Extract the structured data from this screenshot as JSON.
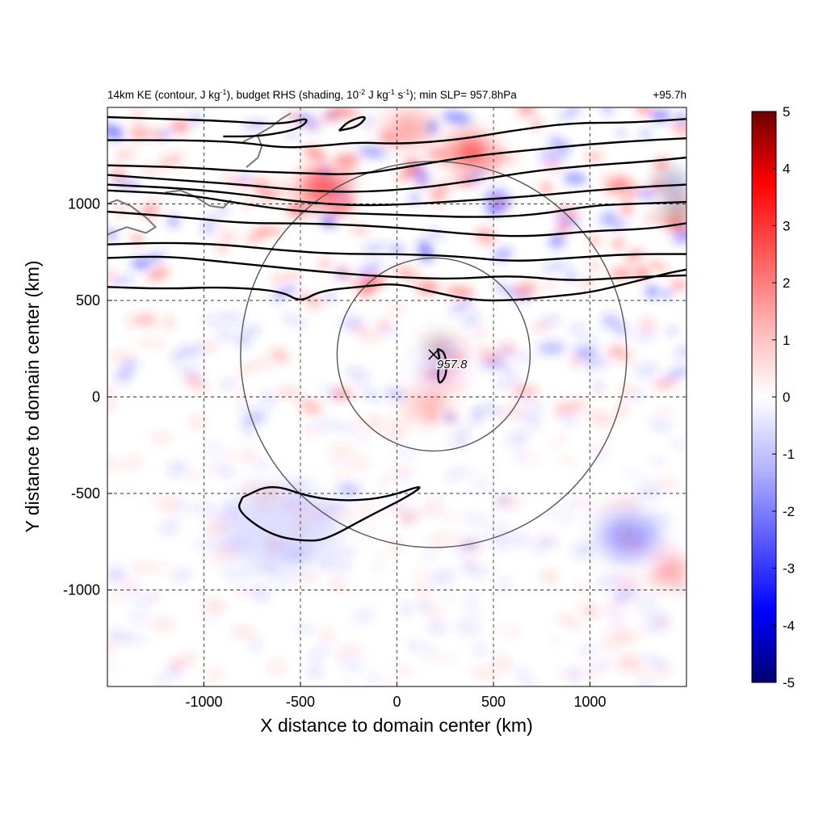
{
  "figure": {
    "title": {
      "p1": "14km KE (contour, J kg",
      "p1_sup": "-1",
      "p2": "), budget RHS (shading, 10",
      "p2_sup": "-2",
      "p3": " J kg",
      "p3_sup": "-1",
      "p4": " s",
      "p4_sup": "-1",
      "p5": "); min SLP= 957.8hPa"
    },
    "time_label": "+95.7h",
    "center_label": "957.8",
    "colors": {
      "positive": "#e00000",
      "negative": "#0000e0",
      "neutral": "#ffffff"
    }
  },
  "chart_data": {
    "type": "heatmap",
    "xlabel": "X distance to domain center (km)",
    "ylabel": "Y distance to domain center (km)",
    "xlim": [
      -1500,
      1500
    ],
    "ylim": [
      -1500,
      1500
    ],
    "x_ticks": [
      {
        "value": -1000,
        "label": "-1000"
      },
      {
        "value": -500,
        "label": "-500"
      },
      {
        "value": 0,
        "label": "0"
      },
      {
        "value": 500,
        "label": "500"
      },
      {
        "value": 1000,
        "label": "1000"
      }
    ],
    "y_ticks": [
      {
        "value": -1000,
        "label": "-1000"
      },
      {
        "value": -500,
        "label": "-500"
      },
      {
        "value": 0,
        "label": "0"
      },
      {
        "value": 500,
        "label": "500"
      },
      {
        "value": 1000,
        "label": "1000"
      }
    ],
    "grid": true,
    "colorbar": {
      "range": [
        -5,
        5
      ],
      "ticks": [
        {
          "value": 5,
          "label": "5"
        },
        {
          "value": 4,
          "label": "4"
        },
        {
          "value": 3,
          "label": "3"
        },
        {
          "value": 2,
          "label": "2"
        },
        {
          "value": 1,
          "label": "1"
        },
        {
          "value": 0,
          "label": "0"
        },
        {
          "value": -1,
          "label": "-1"
        },
        {
          "value": -2,
          "label": "-2"
        },
        {
          "value": -3,
          "label": "-3"
        },
        {
          "value": -4,
          "label": "-4"
        },
        {
          "value": -5,
          "label": "-5"
        }
      ],
      "colors": [
        "#00006e",
        "#0000ff",
        "#5a5aff",
        "#b4b4ff",
        "#ffffff",
        "#ffb4b4",
        "#ff5a5a",
        "#ff0000",
        "#6e0000"
      ]
    },
    "storm_center": {
      "x": 190,
      "y": 220,
      "min_slp_hPa": 957.8
    },
    "range_rings_km": [
      500,
      1000
    ],
    "shading_features": [
      {
        "x": 220,
        "y": 250,
        "value": 4.5,
        "r": 40
      },
      {
        "x": 260,
        "y": 90,
        "value": 3.5,
        "r": 35
      },
      {
        "x": 160,
        "y": 140,
        "value": -3.0,
        "r": 30
      },
      {
        "x": 300,
        "y": 180,
        "value": -2.5,
        "r": 25
      },
      {
        "x": 150,
        "y": -40,
        "value": 2.0,
        "r": 70
      },
      {
        "x": -380,
        "y": 1080,
        "value": 3.5,
        "r": 90
      },
      {
        "x": 60,
        "y": 1390,
        "value": 3.0,
        "r": 80
      },
      {
        "x": 380,
        "y": 1270,
        "value": 3.5,
        "r": 80
      },
      {
        "x": 1430,
        "y": 1100,
        "value": -4.5,
        "r": 40
      },
      {
        "x": 1460,
        "y": 960,
        "value": 4.5,
        "r": 45
      },
      {
        "x": 1420,
        "y": -900,
        "value": 3.5,
        "r": 50
      },
      {
        "x": 1200,
        "y": -720,
        "value": -2.5,
        "r": 110
      },
      {
        "x": -600,
        "y": -680,
        "value": -1.5,
        "r": 220
      }
    ],
    "ke_contours": [
      {
        "points": [
          [
            -1500,
            1450
          ],
          [
            -1200,
            1440
          ],
          [
            -900,
            1430
          ],
          [
            -600,
            1410
          ],
          [
            -450,
            1450
          ],
          [
            -500,
            1390
          ],
          [
            -700,
            1350
          ],
          [
            -900,
            1350
          ]
        ]
      },
      {
        "points": [
          [
            -300,
            1380
          ],
          [
            -200,
            1400
          ],
          [
            -150,
            1460
          ],
          [
            -250,
            1430
          ],
          [
            -300,
            1380
          ]
        ]
      },
      {
        "points": [
          [
            -1500,
            1330
          ],
          [
            -1100,
            1330
          ],
          [
            -800,
            1320
          ],
          [
            -600,
            1290
          ],
          [
            -400,
            1300
          ],
          [
            -200,
            1320
          ],
          [
            0,
            1310
          ],
          [
            300,
            1330
          ],
          [
            600,
            1380
          ],
          [
            900,
            1420
          ],
          [
            1200,
            1420
          ],
          [
            1500,
            1440
          ]
        ]
      },
      {
        "points": [
          [
            -1500,
            1200
          ],
          [
            -1100,
            1190
          ],
          [
            -800,
            1170
          ],
          [
            -500,
            1160
          ],
          [
            -200,
            1150
          ],
          [
            100,
            1200
          ],
          [
            400,
            1250
          ],
          [
            700,
            1280
          ],
          [
            1000,
            1310
          ],
          [
            1300,
            1330
          ],
          [
            1500,
            1340
          ]
        ]
      },
      {
        "points": [
          [
            -1500,
            1150
          ],
          [
            -1100,
            1120
          ],
          [
            -800,
            1100
          ],
          [
            -500,
            1070
          ],
          [
            -200,
            1060
          ],
          [
            100,
            1080
          ],
          [
            400,
            1120
          ],
          [
            700,
            1170
          ],
          [
            1000,
            1200
          ],
          [
            1300,
            1220
          ],
          [
            1500,
            1240
          ]
        ]
      },
      {
        "points": [
          [
            -1500,
            1100
          ],
          [
            -1100,
            1080
          ],
          [
            -800,
            1050
          ],
          [
            -500,
            1010
          ],
          [
            -200,
            990
          ],
          [
            100,
            1000
          ],
          [
            400,
            1020
          ],
          [
            700,
            1040
          ],
          [
            1000,
            1070
          ],
          [
            1300,
            1090
          ],
          [
            1500,
            1100
          ]
        ]
      },
      {
        "points": [
          [
            -1500,
            1070
          ],
          [
            -1100,
            1050
          ],
          [
            -800,
            1000
          ],
          [
            -500,
            960
          ],
          [
            -200,
            950
          ],
          [
            100,
            940
          ],
          [
            400,
            930
          ],
          [
            700,
            940
          ],
          [
            1000,
            990
          ],
          [
            1200,
            1000
          ],
          [
            1500,
            1010
          ]
        ]
      },
      {
        "points": [
          [
            -1500,
            960
          ],
          [
            -1100,
            930
          ],
          [
            -800,
            900
          ],
          [
            -500,
            900
          ],
          [
            -200,
            890
          ],
          [
            100,
            870
          ],
          [
            400,
            840
          ],
          [
            700,
            830
          ],
          [
            1000,
            860
          ],
          [
            1300,
            870
          ],
          [
            1500,
            900
          ]
        ]
      },
      {
        "points": [
          [
            -1500,
            790
          ],
          [
            -1200,
            800
          ],
          [
            -900,
            790
          ],
          [
            -600,
            760
          ],
          [
            -300,
            740
          ],
          [
            0,
            740
          ],
          [
            300,
            730
          ],
          [
            600,
            700
          ],
          [
            900,
            720
          ],
          [
            1200,
            740
          ],
          [
            1500,
            740
          ]
        ]
      },
      {
        "points": [
          [
            -1500,
            720
          ],
          [
            -1200,
            730
          ],
          [
            -900,
            700
          ],
          [
            -600,
            670
          ],
          [
            -300,
            640
          ],
          [
            0,
            620
          ],
          [
            300,
            610
          ],
          [
            600,
            630
          ],
          [
            900,
            600
          ],
          [
            1200,
            620
          ],
          [
            1500,
            630
          ]
        ]
      },
      {
        "points": [
          [
            -1500,
            570
          ],
          [
            -1200,
            560
          ],
          [
            -900,
            570
          ],
          [
            -600,
            550
          ],
          [
            -500,
            490
          ],
          [
            -400,
            550
          ],
          [
            -200,
            570
          ],
          [
            0,
            590
          ],
          [
            200,
            540
          ],
          [
            400,
            500
          ],
          [
            600,
            500
          ],
          [
            800,
            520
          ],
          [
            1000,
            540
          ],
          [
            1200,
            590
          ],
          [
            1400,
            640
          ],
          [
            1500,
            660
          ]
        ]
      },
      {
        "points": [
          [
            -800,
            -520
          ],
          [
            -650,
            -450
          ],
          [
            -450,
            -520
          ],
          [
            -250,
            -540
          ],
          [
            -50,
            -520
          ],
          [
            150,
            -450
          ],
          [
            50,
            -520
          ],
          [
            -150,
            -620
          ],
          [
            -350,
            -730
          ],
          [
            -450,
            -750
          ],
          [
            -650,
            -720
          ],
          [
            -830,
            -590
          ],
          [
            -800,
            -520
          ]
        ]
      },
      {
        "points": [
          [
            210,
            250
          ],
          [
            250,
            230
          ],
          [
            260,
            120
          ],
          [
            220,
            60
          ],
          [
            210,
            120
          ],
          [
            225,
            180
          ],
          [
            210,
            250
          ]
        ]
      }
    ],
    "coastline": [
      {
        "points": [
          [
            -1500,
            1000
          ],
          [
            -1450,
            1020
          ],
          [
            -1380,
            990
          ],
          [
            -1300,
            930
          ],
          [
            -1250,
            880
          ],
          [
            -1300,
            850
          ],
          [
            -1400,
            880
          ],
          [
            -1480,
            850
          ],
          [
            -1500,
            840
          ]
        ]
      },
      {
        "points": [
          [
            -1200,
            1060
          ],
          [
            -1120,
            1070
          ],
          [
            -1050,
            1040
          ],
          [
            -970,
            990
          ],
          [
            -900,
            980
          ],
          [
            -860,
            1020
          ]
        ]
      },
      {
        "points": [
          [
            -800,
            1320
          ],
          [
            -720,
            1360
          ],
          [
            -650,
            1400
          ],
          [
            -600,
            1440
          ],
          [
            -550,
            1470
          ]
        ]
      },
      {
        "points": [
          [
            -780,
            1190
          ],
          [
            -720,
            1240
          ],
          [
            -700,
            1300
          ],
          [
            -720,
            1350
          ]
        ]
      }
    ]
  }
}
